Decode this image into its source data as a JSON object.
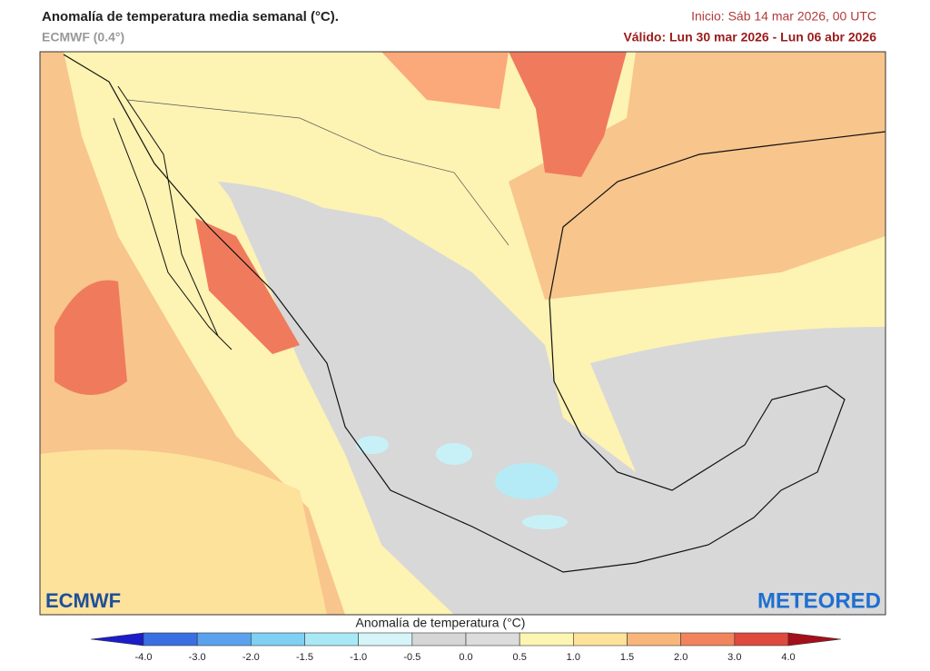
{
  "header": {
    "title": "Anomalía de temperatura media semanal (°C).",
    "model": "ECMWF (0.4°)",
    "init": "Inicio: Sáb 14 mar 2026, 00 UTC",
    "valid": "Válido: Lun 30 mar 2026 - Lun 06 abr 2026"
  },
  "map": {
    "logo_left": "ECMWF",
    "logo_right": "METEORED"
  },
  "legend": {
    "title": "Anomalía de temperatura (°C)",
    "ticks": [
      "-4.0",
      "-3.0",
      "-2.0",
      "-1.5",
      "-1.0",
      "-0.5",
      "0.0",
      "0.5",
      "1.0",
      "1.5",
      "2.0",
      "3.0",
      "4.0"
    ],
    "colors": [
      "#1c1cc8",
      "#3a6fe3",
      "#5aa2ee",
      "#7fd0f3",
      "#a9e9f6",
      "#d5f5f8",
      "#d6d6d6",
      "#dcdcdc",
      "#fdf6b2",
      "#fde29a",
      "#f8b67a",
      "#f1845d",
      "#df4a3f",
      "#a50f1b"
    ]
  }
}
